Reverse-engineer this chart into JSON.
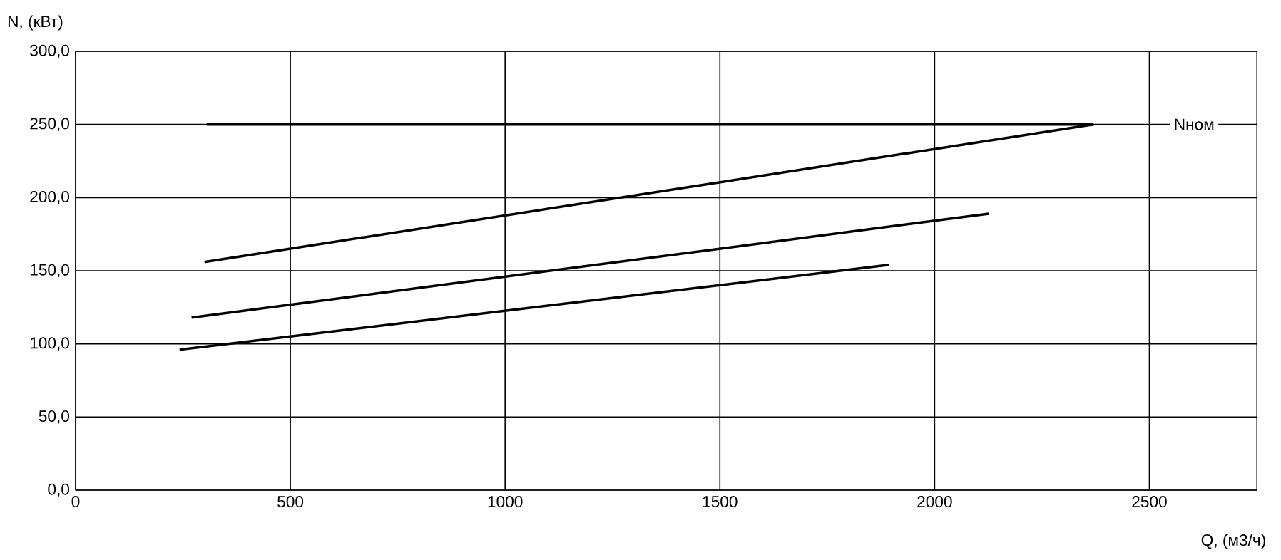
{
  "chart_data": {
    "type": "line",
    "xlabel": "Q, (м3/ч)",
    "ylabel": "N, (кВт)",
    "series": [
      {
        "name": "Nном",
        "color": "#000000",
        "x": [
          305,
          2370
        ],
        "values": [
          250,
          250
        ]
      },
      {
        "color": "#000000",
        "x": [
          300,
          2370
        ],
        "values": [
          156,
          250
        ]
      },
      {
        "color": "#000000",
        "x": [
          270,
          2126
        ],
        "values": [
          118,
          189
        ]
      },
      {
        "color": "#000000",
        "x": [
          242,
          1894
        ],
        "values": [
          96,
          154
        ]
      }
    ],
    "xlim": [
      0,
      2750
    ],
    "ylim": [
      0,
      300
    ],
    "xticks": [
      0,
      500,
      1000,
      1500,
      2000,
      2500
    ],
    "yticks": [
      {
        "value": 0,
        "label": "0,0"
      },
      {
        "value": 50,
        "label": "50,0"
      },
      {
        "value": 100,
        "label": "100,0"
      },
      {
        "value": 150,
        "label": "150,0"
      },
      {
        "value": 200,
        "label": "200,0"
      },
      {
        "value": 250,
        "label": "250,0"
      },
      {
        "value": 300,
        "label": "300,0"
      }
    ],
    "grid": true,
    "marker": "none",
    "line_style": "solid"
  }
}
